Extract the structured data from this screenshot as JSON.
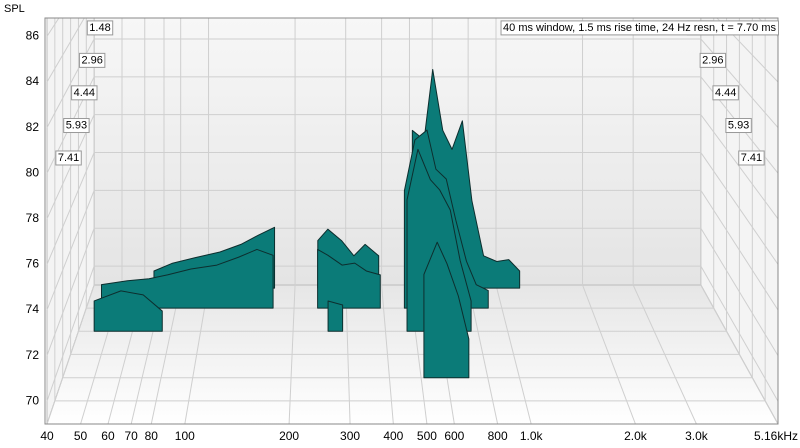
{
  "chart_data": {
    "type": "waterfall",
    "y_label": "SPL",
    "annotation": "40 ms window, 1.5 ms rise time,  24 Hz resn, t = 7.70 ms",
    "xlim": [
      40,
      5160
    ],
    "xticks": [
      40,
      50,
      60,
      70,
      80,
      100,
      200,
      300,
      400,
      500,
      600,
      800,
      {
        "value": 1000,
        "label": "1.0k"
      },
      {
        "value": 2000,
        "label": "2.0k"
      },
      {
        "value": 3000,
        "label": "3.0k"
      },
      {
        "value": 5160,
        "label": "5.16kHz"
      }
    ],
    "x_log": true,
    "ylim": [
      69,
      86.8
    ],
    "yticks": [
      70,
      72,
      74,
      76,
      78,
      80,
      82,
      84,
      86
    ],
    "zlim": [
      0,
      8.89
    ],
    "zticks": [
      1.48,
      2.96,
      4.44,
      5.93,
      7.41
    ],
    "grid": true,
    "color": "#0b7b78",
    "x": [
      45,
      55,
      65,
      75,
      90,
      110,
      130,
      150,
      170,
      185,
      240,
      260,
      290,
      320,
      350,
      390,
      430,
      470,
      510,
      560,
      600,
      650,
      700,
      760,
      820,
      900,
      1000,
      1100,
      1200
    ],
    "series": [
      {
        "z": 0.2,
        "values": [
          null,
          null,
          69.9,
          70.3,
          70.6,
          70.9,
          71.3,
          71.8,
          72.2,
          null,
          71.5,
          72.1,
          71.5,
          70.7,
          71.3,
          70.7,
          null,
          null,
          77.3,
          76.8,
          80.5,
          77.3,
          76.3,
          77.8,
          73.6,
          70.7,
          70.4,
          70.5,
          69.9
        ]
      },
      {
        "z": 1.48,
        "values": [
          70.2,
          70.4,
          70.5,
          70.7,
          71.0,
          71.2,
          71.6,
          72.0,
          71.7,
          null,
          72.0,
          71.7,
          71.2,
          71.3,
          70.9,
          70.7,
          null,
          75.0,
          77.6,
          78.1,
          76.1,
          75.6,
          73.5,
          71.4,
          70.2,
          69.9,
          null,
          null,
          null
        ]
      },
      {
        "z": 2.96,
        "values": [
          70.5,
          71.0,
          70.8,
          70.0,
          null,
          null,
          null,
          null,
          null,
          null,
          null,
          70.5,
          70.3,
          null,
          null,
          null,
          null,
          75.5,
          78.0,
          76.5,
          76.0,
          75.0,
          72.5,
          70.5,
          null,
          null,
          null,
          null,
          null
        ]
      },
      {
        "z": 5.93,
        "values": [
          null,
          null,
          null,
          null,
          null,
          null,
          null,
          null,
          null,
          null,
          null,
          null,
          null,
          null,
          null,
          null,
          null,
          null,
          73.8,
          75.3,
          74.3,
          72.8,
          70.8,
          null,
          null,
          null,
          null,
          null,
          null
        ]
      }
    ]
  }
}
